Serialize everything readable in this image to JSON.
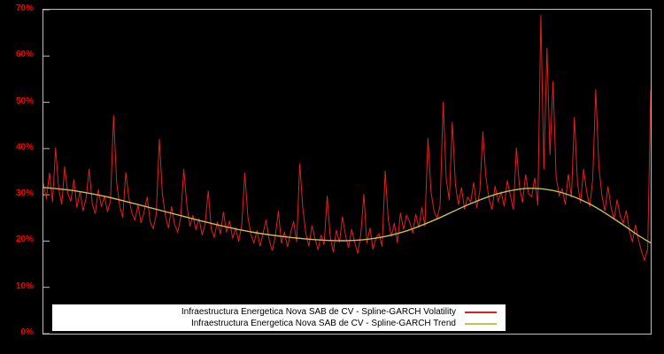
{
  "figure": {
    "background": "#000000",
    "plot_border_color": "#bdbdbd",
    "tick_label_color": "#ff0000"
  },
  "chart_data": {
    "type": "line",
    "title": "",
    "xlabel": "",
    "ylabel": "",
    "ylim": [
      0,
      70
    ],
    "yticks": [
      0,
      10,
      20,
      30,
      40,
      50,
      60,
      70
    ],
    "ytick_format": "percent",
    "x_range": [
      0,
      1
    ],
    "x_axis_labels": "none",
    "grid": false,
    "legend_position": "bottom-center",
    "series": [
      {
        "name": "Infraestructura Energetica Nova SAB de CV - Spline-GARCH Volatility",
        "color": "#e02020",
        "style": "jagged",
        "values": [
          32.5,
          29.1,
          34.8,
          28.4,
          40.2,
          31.5,
          27.9,
          36.1,
          30.3,
          28.6,
          33.4,
          27.2,
          30.8,
          26.5,
          29.3,
          35.6,
          28.1,
          25.9,
          31.2,
          27.4,
          29.8,
          26.3,
          28.7,
          47.2,
          32.8,
          27.6,
          25.1,
          34.9,
          29.4,
          26.0,
          24.6,
          27.8,
          23.9,
          26.4,
          29.6,
          24.1,
          22.7,
          25.8,
          42.1,
          30.2,
          25.4,
          22.8,
          27.5,
          23.6,
          21.9,
          25.1,
          35.6,
          27.8,
          23.2,
          25.6,
          22.4,
          24.9,
          21.3,
          23.7,
          30.9,
          22.6,
          20.8,
          24.2,
          21.5,
          26.3,
          21.9,
          24.4,
          20.6,
          22.8,
          19.9,
          23.5,
          34.8,
          25.2,
          21.4,
          19.6,
          22.3,
          18.9,
          21.7,
          24.6,
          20.2,
          17.9,
          21.1,
          26.5,
          19.5,
          22.0,
          18.7,
          21.8,
          24.3,
          19.8,
          36.8,
          27.1,
          21.6,
          18.9,
          23.4,
          20.5,
          18.1,
          21.3,
          19.2,
          29.8,
          20.9,
          17.6,
          22.4,
          19.7,
          25.3,
          21.2,
          18.5,
          22.6,
          19.8,
          17.3,
          21.4,
          30.2,
          19.5,
          22.9,
          18.2,
          20.7,
          21.6,
          18.8,
          35.2,
          24.7,
          21.0,
          23.9,
          19.6,
          26.1,
          22.5,
          25.6,
          24.2,
          21.7,
          25.8,
          22.9,
          27.3,
          23.2,
          42.3,
          30.7,
          26.5,
          24.8,
          27.7,
          50.1,
          33.5,
          28.8,
          45.8,
          32.2,
          27.8,
          31.6,
          26.9,
          29.5,
          28.4,
          32.7,
          27.2,
          30.8,
          43.7,
          33.9,
          29.1,
          26.8,
          31.9,
          28.6,
          30.6,
          27.5,
          33.1,
          29.9,
          26.8,
          40.2,
          31.7,
          28.3,
          34.4,
          30.2,
          29.6,
          33.7,
          27.7,
          68.9,
          35.5,
          61.8,
          38.6,
          54.6,
          34.0,
          29.8,
          31.3,
          27.9,
          34.5,
          29.4,
          46.8,
          32.5,
          28.2,
          35.6,
          30.7,
          27.4,
          33.4,
          52.8,
          36.3,
          29.9,
          26.5,
          31.8,
          27.3,
          24.7,
          29.0,
          25.4,
          23.9,
          26.6,
          22.2,
          19.8,
          23.5,
          20.3,
          17.7,
          15.9,
          18.4,
          52.6
        ]
      },
      {
        "name": "Infraestructura Energetica Nova SAB de CV - Spline-GARCH Trend",
        "color": "#c6bd52",
        "style": "smooth",
        "x": [
          0.0,
          0.05,
          0.1,
          0.15,
          0.2,
          0.25,
          0.3,
          0.35,
          0.4,
          0.45,
          0.5,
          0.55,
          0.6,
          0.65,
          0.7,
          0.75,
          0.8,
          0.85,
          0.9,
          0.95,
          0.98,
          1.0
        ],
        "values": [
          31.6,
          30.9,
          29.7,
          28.1,
          26.4,
          24.7,
          23.1,
          21.8,
          20.9,
          20.3,
          20.1,
          20.7,
          22.3,
          24.9,
          27.9,
          30.3,
          31.4,
          30.6,
          28.0,
          23.9,
          21.2,
          19.6
        ]
      }
    ]
  }
}
